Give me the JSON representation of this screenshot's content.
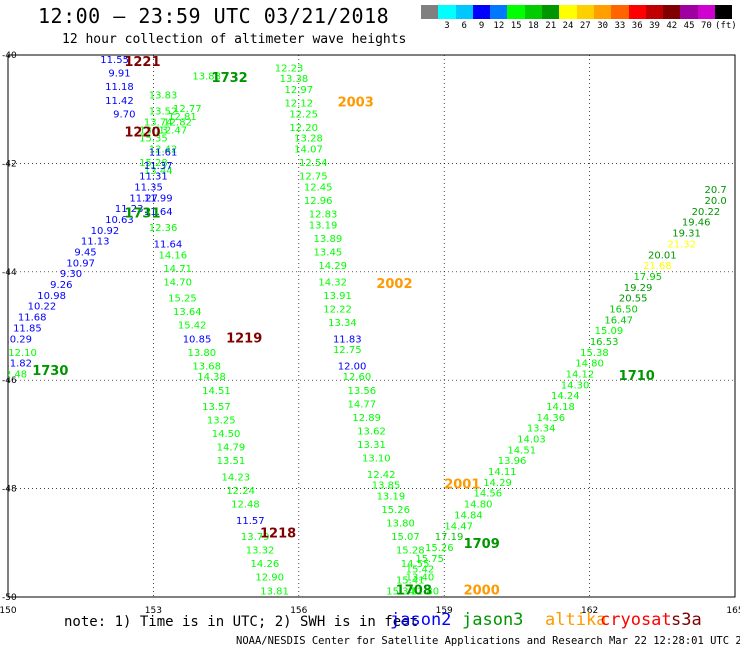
{
  "title": "12:00 — 23:59 UTC 03/21/2018",
  "subtitle": "12 hour collection of altimeter wave heights",
  "colorbar": {
    "colors": [
      "#808080",
      "#00ffff",
      "#00c8ff",
      "#0000ff",
      "#0078ff",
      "#00ff00",
      "#00cc00",
      "#009600",
      "#ffff00",
      "#ffd000",
      "#ffa000",
      "#ff6400",
      "#ff0000",
      "#c00000",
      "#800000",
      "#a000a0",
      "#d000d0",
      "#000000"
    ],
    "labels": [
      "",
      "3",
      "6",
      "9",
      "12",
      "15",
      "18",
      "21",
      "24",
      "27",
      "30",
      "33",
      "36",
      "39",
      "42",
      "45",
      "70",
      "(ft)"
    ]
  },
  "note": "note:  1) Time is in UTC; 2) SWH is in feet",
  "credit": "NOAA/NESDIS Center for Satellite Applications and Research   Mar 22 12:28:01 UTC 2018",
  "satellites": [
    {
      "name": "jason2",
      "color": "#0000ff"
    },
    {
      "name": "jason3",
      "color": "#009600"
    },
    {
      "name": "altika",
      "color": "#ff9900"
    },
    {
      "name": "cryosat",
      "color": "#ff0000"
    },
    {
      "name": "s3a",
      "color": "#800000"
    }
  ],
  "map": {
    "lon_range": [
      150,
      165
    ],
    "lat_range": [
      -50,
      -40
    ],
    "lon_ticks": [
      "150",
      "153",
      "156",
      "159",
      "162",
      "165"
    ],
    "lat_ticks": [
      "-40",
      "-42",
      "-44",
      "-46",
      "-48",
      "-50"
    ]
  },
  "points": [
    {
      "lon": 153.2,
      "lat": -40.8,
      "v": "13.83",
      "c": "#00ff00"
    },
    {
      "lon": 153.2,
      "lat": -41.1,
      "v": "13.52",
      "c": "#00ff00"
    },
    {
      "lon": 153.1,
      "lat": -41.3,
      "v": "13.74",
      "c": "#00ff00"
    },
    {
      "lon": 153.0,
      "lat": -41.45,
      "v": "13.13",
      "c": "#00ff00"
    },
    {
      "lon": 153.0,
      "lat": -41.6,
      "v": "15.35",
      "c": "#00ff00"
    },
    {
      "lon": 153.0,
      "lat": -42.05,
      "v": "15.28",
      "c": "#00ff00"
    },
    {
      "lon": 153.7,
      "lat": -41.05,
      "v": "12.77",
      "c": "#00ff00"
    },
    {
      "lon": 153.6,
      "lat": -41.2,
      "v": "12.81",
      "c": "#00ff00"
    },
    {
      "lon": 153.5,
      "lat": -41.3,
      "v": "12.82",
      "c": "#00ff00"
    },
    {
      "lon": 153.4,
      "lat": -41.45,
      "v": "12.47",
      "c": "#00ff00"
    },
    {
      "lon": 153.2,
      "lat": -41.8,
      "v": "12.42",
      "c": "#00ff00"
    },
    {
      "lon": 154.1,
      "lat": -40.45,
      "v": "13.88",
      "c": "#00ff00"
    },
    {
      "lon": 155.8,
      "lat": -40.3,
      "v": "12.23",
      "c": "#00ff00"
    },
    {
      "lon": 155.9,
      "lat": -40.5,
      "v": "13.38",
      "c": "#00ff00"
    },
    {
      "lon": 156.0,
      "lat": -40.7,
      "v": "12.97",
      "c": "#00ff00"
    },
    {
      "lon": 156.0,
      "lat": -40.95,
      "v": "12.12",
      "c": "#00ff00"
    },
    {
      "lon": 156.1,
      "lat": -41.15,
      "v": "12.25",
      "c": "#00ff00"
    },
    {
      "lon": 156.1,
      "lat": -41.4,
      "v": "12.20",
      "c": "#00ff00"
    },
    {
      "lon": 156.2,
      "lat": -41.6,
      "v": "13.28",
      "c": "#00ff00"
    },
    {
      "lon": 156.2,
      "lat": -41.8,
      "v": "14.07",
      "c": "#00ff00"
    },
    {
      "lon": 156.3,
      "lat": -42.05,
      "v": "12.54",
      "c": "#00ff00"
    },
    {
      "lon": 156.3,
      "lat": -42.3,
      "v": "12.75",
      "c": "#00ff00"
    },
    {
      "lon": 156.4,
      "lat": -42.5,
      "v": "12.45",
      "c": "#00ff00"
    },
    {
      "lon": 156.4,
      "lat": -42.75,
      "v": "12.96",
      "c": "#00ff00"
    },
    {
      "lon": 156.5,
      "lat": -43.0,
      "v": "12.83",
      "c": "#00ff00"
    },
    {
      "lon": 156.5,
      "lat": -43.2,
      "v": "13.19",
      "c": "#00ff00"
    },
    {
      "lon": 156.6,
      "lat": -43.45,
      "v": "13.89",
      "c": "#00ff00"
    },
    {
      "lon": 156.6,
      "lat": -43.7,
      "v": "13.45",
      "c": "#00ff00"
    },
    {
      "lon": 156.7,
      "lat": -43.95,
      "v": "14.29",
      "c": "#00ff00"
    },
    {
      "lon": 156.7,
      "lat": -44.25,
      "v": "14.32",
      "c": "#00ff00"
    },
    {
      "lon": 156.8,
      "lat": -44.5,
      "v": "13.91",
      "c": "#00ff00"
    },
    {
      "lon": 156.8,
      "lat": -44.75,
      "v": "12.22",
      "c": "#00ff00"
    },
    {
      "lon": 156.9,
      "lat": -45.0,
      "v": "13.34",
      "c": "#00ff00"
    },
    {
      "lon": 157.0,
      "lat": -45.3,
      "v": "11.83",
      "c": "#0000ff"
    },
    {
      "lon": 157.0,
      "lat": -45.5,
      "v": "12.75",
      "c": "#00ff00"
    },
    {
      "lon": 157.1,
      "lat": -45.8,
      "v": "12.00",
      "c": "#0000ff"
    },
    {
      "lon": 157.2,
      "lat": -46.0,
      "v": "12.60",
      "c": "#00ff00"
    },
    {
      "lon": 157.3,
      "lat": -46.25,
      "v": "13.56",
      "c": "#00ff00"
    },
    {
      "lon": 157.3,
      "lat": -46.5,
      "v": "14.77",
      "c": "#00ff00"
    },
    {
      "lon": 157.4,
      "lat": -46.75,
      "v": "12.89",
      "c": "#00ff00"
    },
    {
      "lon": 157.5,
      "lat": -47.0,
      "v": "13.62",
      "c": "#00ff00"
    },
    {
      "lon": 157.5,
      "lat": -47.25,
      "v": "13.31",
      "c": "#00ff00"
    },
    {
      "lon": 157.6,
      "lat": -47.5,
      "v": "13.10",
      "c": "#00ff00"
    },
    {
      "lon": 157.7,
      "lat": -47.8,
      "v": "12.42",
      "c": "#00ff00"
    },
    {
      "lon": 157.8,
      "lat": -48.0,
      "v": "13.85",
      "c": "#00ff00"
    },
    {
      "lon": 157.9,
      "lat": -48.2,
      "v": "13.19",
      "c": "#00ff00"
    },
    {
      "lon": 158.0,
      "lat": -48.45,
      "v": "15.26",
      "c": "#00ff00"
    },
    {
      "lon": 158.1,
      "lat": -48.7,
      "v": "13.80",
      "c": "#00ff00"
    },
    {
      "lon": 158.2,
      "lat": -48.95,
      "v": "15.07",
      "c": "#00ff00"
    },
    {
      "lon": 158.3,
      "lat": -49.2,
      "v": "15.28",
      "c": "#00ff00"
    },
    {
      "lon": 158.4,
      "lat": -49.45,
      "v": "14.55",
      "c": "#00ff00"
    },
    {
      "lon": 158.5,
      "lat": -49.7,
      "v": "13.40",
      "c": "#00ff00"
    },
    {
      "lon": 158.6,
      "lat": -49.95,
      "v": "12.80",
      "c": "#00ff00"
    },
    {
      "lon": 153.1,
      "lat": -42.2,
      "v": "13.44",
      "c": "#00ff00"
    },
    {
      "lon": 153.1,
      "lat": -42.95,
      "v": "11.64",
      "c": "#0000ff"
    },
    {
      "lon": 153.2,
      "lat": -43.25,
      "v": "12.36",
      "c": "#00ff00"
    },
    {
      "lon": 153.3,
      "lat": -43.55,
      "v": "11.64",
      "c": "#0000ff"
    },
    {
      "lon": 153.4,
      "lat": -43.75,
      "v": "14.16",
      "c": "#00ff00"
    },
    {
      "lon": 153.5,
      "lat": -44.0,
      "v": "14.71",
      "c": "#00ff00"
    },
    {
      "lon": 153.5,
      "lat": -44.25,
      "v": "14.70",
      "c": "#00ff00"
    },
    {
      "lon": 153.6,
      "lat": -44.55,
      "v": "15.25",
      "c": "#00ff00"
    },
    {
      "lon": 153.7,
      "lat": -44.8,
      "v": "13.64",
      "c": "#00ff00"
    },
    {
      "lon": 153.8,
      "lat": -45.05,
      "v": "15.42",
      "c": "#00ff00"
    },
    {
      "lon": 153.9,
      "lat": -45.3,
      "v": "10.85",
      "c": "#0000ff"
    },
    {
      "lon": 154.0,
      "lat": -45.55,
      "v": "13.80",
      "c": "#00ff00"
    },
    {
      "lon": 154.1,
      "lat": -45.8,
      "v": "13.68",
      "c": "#00ff00"
    },
    {
      "lon": 154.2,
      "lat": -46.0,
      "v": "14.38",
      "c": "#00ff00"
    },
    {
      "lon": 154.3,
      "lat": -46.25,
      "v": "14.51",
      "c": "#00ff00"
    },
    {
      "lon": 154.3,
      "lat": -46.55,
      "v": "13.57",
      "c": "#00ff00"
    },
    {
      "lon": 154.4,
      "lat": -46.8,
      "v": "13.25",
      "c": "#00ff00"
    },
    {
      "lon": 154.5,
      "lat": -47.05,
      "v": "14.50",
      "c": "#00ff00"
    },
    {
      "lon": 154.6,
      "lat": -47.3,
      "v": "14.79",
      "c": "#00ff00"
    },
    {
      "lon": 154.6,
      "lat": -47.55,
      "v": "13.51",
      "c": "#00ff00"
    },
    {
      "lon": 154.7,
      "lat": -47.85,
      "v": "14.23",
      "c": "#00ff00"
    },
    {
      "lon": 154.8,
      "lat": -48.1,
      "v": "12.24",
      "c": "#00ff00"
    },
    {
      "lon": 154.9,
      "lat": -48.35,
      "v": "12.48",
      "c": "#00ff00"
    },
    {
      "lon": 155.0,
      "lat": -48.65,
      "v": "11.57",
      "c": "#0000ff"
    },
    {
      "lon": 155.1,
      "lat": -48.95,
      "v": "13.79",
      "c": "#00ff00"
    },
    {
      "lon": 155.2,
      "lat": -49.2,
      "v": "13.32",
      "c": "#00ff00"
    },
    {
      "lon": 155.3,
      "lat": -49.45,
      "v": "14.26",
      "c": "#00ff00"
    },
    {
      "lon": 155.4,
      "lat": -49.7,
      "v": "12.90",
      "c": "#00ff00"
    },
    {
      "lon": 155.5,
      "lat": -49.95,
      "v": "13.81",
      "c": "#00ff00"
    },
    {
      "lon": 152.2,
      "lat": -40.15,
      "v": "11.55",
      "c": "#0000ff"
    },
    {
      "lon": 152.3,
      "lat": -40.4,
      "v": "9.91",
      "c": "#0000ff"
    },
    {
      "lon": 152.3,
      "lat": -40.65,
      "v": "11.18",
      "c": "#0000ff"
    },
    {
      "lon": 152.3,
      "lat": -40.9,
      "v": "11.42",
      "c": "#0000ff"
    },
    {
      "lon": 152.4,
      "lat": -41.15,
      "v": "9.70",
      "c": "#0000ff"
    },
    {
      "lon": 153.2,
      "lat": -41.85,
      "v": "11.61",
      "c": "#0000ff"
    },
    {
      "lon": 153.1,
      "lat": -42.1,
      "v": "11.37",
      "c": "#0000ff"
    },
    {
      "lon": 153.0,
      "lat": -42.3,
      "v": "11.31",
      "c": "#0000ff"
    },
    {
      "lon": 152.9,
      "lat": -42.5,
      "v": "11.35",
      "c": "#0000ff"
    },
    {
      "lon": 152.8,
      "lat": -42.7,
      "v": "11.27",
      "c": "#0000ff"
    },
    {
      "lon": 153.1,
      "lat": -42.7,
      "v": "11.99",
      "c": "#0000ff"
    },
    {
      "lon": 152.5,
      "lat": -42.9,
      "v": "11.23",
      "c": "#0000ff"
    },
    {
      "lon": 152.3,
      "lat": -43.1,
      "v": "10.63",
      "c": "#0000ff"
    },
    {
      "lon": 152.0,
      "lat": -43.3,
      "v": "10.92",
      "c": "#0000ff"
    },
    {
      "lon": 151.8,
      "lat": -43.5,
      "v": "11.13",
      "c": "#0000ff"
    },
    {
      "lon": 151.6,
      "lat": -43.7,
      "v": "9.45",
      "c": "#0000ff"
    },
    {
      "lon": 151.5,
      "lat": -43.9,
      "v": "10.97",
      "c": "#0000ff"
    },
    {
      "lon": 151.3,
      "lat": -44.1,
      "v": "9.30",
      "c": "#0000ff"
    },
    {
      "lon": 151.1,
      "lat": -44.3,
      "v": "9.26",
      "c": "#0000ff"
    },
    {
      "lon": 150.9,
      "lat": -44.5,
      "v": "10.98",
      "c": "#0000ff"
    },
    {
      "lon": 150.7,
      "lat": -44.7,
      "v": "10.22",
      "c": "#0000ff"
    },
    {
      "lon": 150.5,
      "lat": -44.9,
      "v": "11.68",
      "c": "#0000ff"
    },
    {
      "lon": 150.4,
      "lat": -45.1,
      "v": "11.85",
      "c": "#0000ff"
    },
    {
      "lon": 150.2,
      "lat": -45.3,
      "v": "10.29",
      "c": "#0000ff"
    },
    {
      "lon": 150.3,
      "lat": -45.55,
      "v": "12.10",
      "c": "#00ff00"
    },
    {
      "lon": 150.2,
      "lat": -45.75,
      "v": "11.82",
      "c": "#0000ff"
    },
    {
      "lon": 150.1,
      "lat": -45.95,
      "v": "12.48",
      "c": "#00ff00"
    },
    {
      "lon": 164.6,
      "lat": -42.55,
      "v": "20.7",
      "c": "#009600"
    },
    {
      "lon": 164.6,
      "lat": -42.75,
      "v": "20.0",
      "c": "#009600"
    },
    {
      "lon": 164.4,
      "lat": -42.95,
      "v": "20.22",
      "c": "#009600"
    },
    {
      "lon": 164.2,
      "lat": -43.15,
      "v": "19.46",
      "c": "#009600"
    },
    {
      "lon": 164.0,
      "lat": -43.35,
      "v": "19.31",
      "c": "#009600"
    },
    {
      "lon": 163.9,
      "lat": -43.55,
      "v": "21.32",
      "c": "#ffff00"
    },
    {
      "lon": 163.5,
      "lat": -43.75,
      "v": "20.01",
      "c": "#009600"
    },
    {
      "lon": 163.4,
      "lat": -43.95,
      "v": "21.68",
      "c": "#ffff00"
    },
    {
      "lon": 163.2,
      "lat": -44.15,
      "v": "17.95",
      "c": "#00cc00"
    },
    {
      "lon": 163.0,
      "lat": -44.35,
      "v": "19.29",
      "c": "#009600"
    },
    {
      "lon": 162.9,
      "lat": -44.55,
      "v": "20.55",
      "c": "#009600"
    },
    {
      "lon": 162.7,
      "lat": -44.75,
      "v": "16.50",
      "c": "#00cc00"
    },
    {
      "lon": 162.6,
      "lat": -44.95,
      "v": "16.47",
      "c": "#00cc00"
    },
    {
      "lon": 162.4,
      "lat": -45.15,
      "v": "15.09",
      "c": "#00ff00"
    },
    {
      "lon": 162.3,
      "lat": -45.35,
      "v": "16.53",
      "c": "#00cc00"
    },
    {
      "lon": 162.1,
      "lat": -45.55,
      "v": "15.38",
      "c": "#00ff00"
    },
    {
      "lon": 162.0,
      "lat": -45.75,
      "v": "14.80",
      "c": "#00ff00"
    },
    {
      "lon": 161.8,
      "lat": -45.95,
      "v": "14.12",
      "c": "#00ff00"
    },
    {
      "lon": 161.7,
      "lat": -46.15,
      "v": "14.30",
      "c": "#00ff00"
    },
    {
      "lon": 161.5,
      "lat": -46.35,
      "v": "14.24",
      "c": "#00ff00"
    },
    {
      "lon": 161.4,
      "lat": -46.55,
      "v": "14.18",
      "c": "#00ff00"
    },
    {
      "lon": 161.2,
      "lat": -46.75,
      "v": "14.36",
      "c": "#00ff00"
    },
    {
      "lon": 161.0,
      "lat": -46.95,
      "v": "13.34",
      "c": "#00ff00"
    },
    {
      "lon": 160.8,
      "lat": -47.15,
      "v": "14.03",
      "c": "#00ff00"
    },
    {
      "lon": 160.6,
      "lat": -47.35,
      "v": "14.51",
      "c": "#00ff00"
    },
    {
      "lon": 160.4,
      "lat": -47.55,
      "v": "13.96",
      "c": "#00ff00"
    },
    {
      "lon": 160.2,
      "lat": -47.75,
      "v": "14.11",
      "c": "#00ff00"
    },
    {
      "lon": 160.1,
      "lat": -47.95,
      "v": "14.29",
      "c": "#00ff00"
    },
    {
      "lon": 159.9,
      "lat": -48.15,
      "v": "14.56",
      "c": "#00ff00"
    },
    {
      "lon": 159.7,
      "lat": -48.35,
      "v": "14.80",
      "c": "#00ff00"
    },
    {
      "lon": 159.5,
      "lat": -48.55,
      "v": "14.84",
      "c": "#00ff00"
    },
    {
      "lon": 159.3,
      "lat": -48.75,
      "v": "14.47",
      "c": "#00ff00"
    },
    {
      "lon": 159.1,
      "lat": -48.95,
      "v": "17.19",
      "c": "#00cc00"
    },
    {
      "lon": 158.9,
      "lat": -49.15,
      "v": "15.26",
      "c": "#00ff00"
    },
    {
      "lon": 158.7,
      "lat": -49.35,
      "v": "15.75",
      "c": "#00ff00"
    },
    {
      "lon": 158.5,
      "lat": -49.55,
      "v": "15.42",
      "c": "#00ff00"
    },
    {
      "lon": 158.3,
      "lat": -49.75,
      "v": "15.41",
      "c": "#00ff00"
    },
    {
      "lon": 158.1,
      "lat": -49.95,
      "v": "15.34",
      "c": "#00ff00"
    },
    {
      "lon": 157.9,
      "lat": -50.15,
      "v": "16.11",
      "c": "#00cc00"
    },
    {
      "lon": 157.7,
      "lat": -50.35,
      "v": "15.14",
      "c": "#00ff00"
    },
    {
      "lon": 157.5,
      "lat": -50.55,
      "v": "15.38",
      "c": "#00ff00"
    },
    {
      "lon": 157.3,
      "lat": -50.75,
      "v": "14.02",
      "c": "#00ff00"
    },
    {
      "lon": 157.1,
      "lat": -50.95,
      "v": "15.06",
      "c": "#00cc00"
    }
  ],
  "times": [
    {
      "lon": 152.4,
      "lat": -40.2,
      "t": "1221",
      "c": "#800000"
    },
    {
      "lon": 154.2,
      "lat": -40.5,
      "t": "1732",
      "c": "#009600"
    },
    {
      "lon": 156.8,
      "lat": -40.95,
      "t": "2003",
      "c": "#ff9900"
    },
    {
      "lon": 152.4,
      "lat": -41.5,
      "t": "1220",
      "c": "#800000"
    },
    {
      "lon": 152.4,
      "lat": -43.0,
      "t": "1731",
      "c": "#009600"
    },
    {
      "lon": 157.6,
      "lat": -44.3,
      "t": "2002",
      "c": "#ff9900"
    },
    {
      "lon": 154.5,
      "lat": -45.3,
      "t": "1219",
      "c": "#800000"
    },
    {
      "lon": 150.5,
      "lat": -45.9,
      "t": "1730",
      "c": "#009600"
    },
    {
      "lon": 162.6,
      "lat": -46.0,
      "t": "1710",
      "c": "#009600"
    },
    {
      "lon": 159.0,
      "lat": -48.0,
      "t": "2001",
      "c": "#ff9900"
    },
    {
      "lon": 155.2,
      "lat": -48.9,
      "t": "1218",
      "c": "#800000"
    },
    {
      "lon": 159.4,
      "lat": -49.1,
      "t": "1709",
      "c": "#009600"
    },
    {
      "lon": 158.0,
      "lat": -49.95,
      "t": "1708",
      "c": "#009600"
    },
    {
      "lon": 159.4,
      "lat": -49.95,
      "t": "2000",
      "c": "#ff9900"
    }
  ]
}
